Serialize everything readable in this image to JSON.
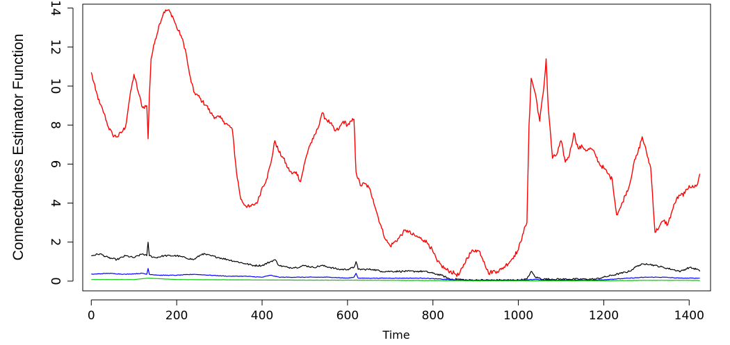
{
  "chart_data": {
    "type": "line",
    "title": "",
    "xlabel": "Time",
    "ylabel": "Connectedness Estimator Function",
    "xlim": [
      -20,
      1450
    ],
    "ylim": [
      -0.5,
      14.2
    ],
    "xticks": [
      0,
      200,
      400,
      600,
      800,
      1000,
      1200,
      1400
    ],
    "yticks": [
      0,
      2,
      4,
      6,
      8,
      10,
      12,
      14
    ],
    "grid": false,
    "legend": "none",
    "series": [
      {
        "color": "#ff0000",
        "x": [
          0,
          10,
          20,
          30,
          40,
          50,
          60,
          70,
          80,
          90,
          100,
          110,
          120,
          130,
          133,
          136,
          140,
          150,
          160,
          170,
          180,
          190,
          200,
          210,
          220,
          230,
          240,
          250,
          260,
          270,
          280,
          290,
          300,
          310,
          320,
          330,
          340,
          350,
          360,
          370,
          380,
          390,
          400,
          410,
          420,
          430,
          440,
          450,
          460,
          470,
          480,
          490,
          500,
          510,
          520,
          530,
          540,
          550,
          560,
          570,
          580,
          590,
          600,
          610,
          615,
          620,
          630,
          640,
          650,
          660,
          670,
          680,
          690,
          700,
          710,
          720,
          730,
          740,
          750,
          760,
          770,
          780,
          790,
          800,
          810,
          820,
          830,
          840,
          850,
          860,
          870,
          880,
          890,
          900,
          910,
          920,
          930,
          940,
          950,
          960,
          970,
          980,
          990,
          1000,
          1010,
          1020,
          1025,
          1030,
          1040,
          1050,
          1060,
          1065,
          1070,
          1080,
          1090,
          1100,
          1110,
          1120,
          1130,
          1140,
          1150,
          1160,
          1170,
          1180,
          1190,
          1200,
          1210,
          1220,
          1230,
          1240,
          1250,
          1260,
          1270,
          1280,
          1290,
          1300,
          1310,
          1320,
          1330,
          1340,
          1350,
          1360,
          1370,
          1380,
          1390,
          1400,
          1410,
          1420,
          1425
        ],
        "y": [
          10.7,
          9.8,
          9.1,
          8.6,
          7.9,
          7.5,
          7.4,
          7.6,
          7.9,
          9.4,
          10.6,
          9.7,
          8.9,
          9.0,
          7.3,
          9.5,
          11.4,
          12.4,
          13.2,
          13.8,
          13.9,
          13.6,
          13.0,
          12.6,
          11.9,
          10.6,
          9.7,
          9.5,
          9.2,
          9.0,
          8.6,
          8.4,
          8.4,
          8.2,
          8.0,
          7.8,
          5.6,
          4.2,
          3.9,
          3.8,
          3.9,
          4.1,
          4.8,
          5.2,
          6.0,
          7.2,
          6.6,
          6.3,
          5.8,
          5.5,
          5.6,
          5.1,
          6.1,
          6.9,
          7.3,
          7.8,
          8.6,
          8.3,
          8.1,
          7.7,
          7.8,
          8.2,
          8.0,
          8.2,
          8.3,
          5.6,
          4.9,
          5.0,
          4.8,
          4.2,
          3.4,
          2.7,
          2.1,
          1.8,
          2.0,
          2.2,
          2.5,
          2.6,
          2.4,
          2.3,
          2.2,
          2.1,
          1.9,
          1.5,
          1.0,
          0.8,
          0.6,
          0.5,
          0.4,
          0.3,
          0.7,
          1.2,
          1.5,
          1.6,
          1.5,
          1.0,
          0.4,
          0.5,
          0.5,
          0.6,
          0.8,
          1.0,
          1.3,
          1.6,
          2.4,
          3.0,
          8.0,
          10.4,
          9.6,
          8.2,
          10.0,
          11.4,
          8.9,
          6.3,
          6.5,
          7.2,
          6.1,
          6.5,
          7.6,
          6.8,
          6.9,
          6.7,
          6.8,
          6.5,
          6.0,
          5.8,
          5.5,
          5.2,
          3.4,
          3.8,
          4.4,
          4.9,
          6.0,
          6.6,
          7.4,
          6.6,
          5.8,
          2.5,
          2.8,
          3.1,
          2.9,
          3.6,
          4.2,
          4.4,
          4.5,
          4.9,
          4.8,
          5.0,
          5.5
        ],
        "noise": 0.22
      },
      {
        "color": "#000000",
        "x": [
          0,
          20,
          40,
          60,
          80,
          100,
          120,
          130,
          133,
          136,
          150,
          170,
          200,
          220,
          240,
          260,
          280,
          300,
          320,
          340,
          360,
          380,
          400,
          420,
          430,
          440,
          460,
          480,
          500,
          520,
          540,
          560,
          580,
          600,
          615,
          620,
          625,
          640,
          660,
          680,
          700,
          720,
          740,
          760,
          780,
          800,
          820,
          840,
          860,
          880,
          900,
          920,
          940,
          960,
          980,
          1000,
          1020,
          1030,
          1040,
          1060,
          1080,
          1100,
          1120,
          1140,
          1160,
          1180,
          1200,
          1220,
          1240,
          1260,
          1280,
          1300,
          1320,
          1340,
          1360,
          1380,
          1400,
          1420,
          1425
        ],
        "y": [
          1.3,
          1.4,
          1.2,
          1.1,
          1.3,
          1.2,
          1.4,
          1.3,
          2.0,
          1.3,
          1.2,
          1.3,
          1.3,
          1.2,
          1.1,
          1.4,
          1.3,
          1.2,
          1.1,
          1.0,
          0.9,
          0.8,
          0.8,
          1.0,
          1.1,
          0.8,
          0.7,
          0.7,
          0.8,
          0.7,
          0.8,
          0.7,
          0.6,
          0.6,
          0.7,
          1.0,
          0.6,
          0.6,
          0.6,
          0.5,
          0.5,
          0.5,
          0.5,
          0.5,
          0.5,
          0.4,
          0.3,
          0.1,
          0.1,
          0.05,
          0.05,
          0.05,
          0.05,
          0.05,
          0.05,
          0.05,
          0.1,
          0.5,
          0.2,
          0.1,
          0.1,
          0.1,
          0.1,
          0.1,
          0.1,
          0.1,
          0.2,
          0.3,
          0.4,
          0.5,
          0.8,
          0.9,
          0.8,
          0.7,
          0.6,
          0.5,
          0.7,
          0.6,
          0.5
        ],
        "noise": 0.09
      },
      {
        "color": "#0000ff",
        "x": [
          0,
          40,
          80,
          120,
          130,
          133,
          136,
          160,
          200,
          240,
          280,
          320,
          360,
          400,
          420,
          440,
          480,
          520,
          560,
          600,
          615,
          620,
          625,
          660,
          700,
          740,
          780,
          820,
          860,
          900,
          940,
          980,
          1020,
          1040,
          1060,
          1100,
          1140,
          1180,
          1220,
          1260,
          1300,
          1340,
          1380,
          1420,
          1425
        ],
        "y": [
          0.35,
          0.4,
          0.35,
          0.4,
          0.35,
          0.65,
          0.35,
          0.3,
          0.3,
          0.35,
          0.3,
          0.25,
          0.25,
          0.2,
          0.3,
          0.2,
          0.2,
          0.2,
          0.2,
          0.15,
          0.2,
          0.4,
          0.15,
          0.15,
          0.15,
          0.15,
          0.15,
          0.1,
          0.05,
          0.05,
          0.05,
          0.05,
          0.05,
          0.1,
          0.05,
          0.05,
          0.05,
          0.05,
          0.1,
          0.15,
          0.2,
          0.2,
          0.15,
          0.15,
          0.15
        ],
        "noise": 0.03
      },
      {
        "color": "#00cc00",
        "x": [
          0,
          100,
          133,
          200,
          300,
          400,
          500,
          600,
          700,
          800,
          900,
          1000,
          1100,
          1200,
          1300,
          1400,
          1425
        ],
        "y": [
          0.08,
          0.08,
          0.15,
          0.08,
          0.07,
          0.06,
          0.05,
          0.05,
          0.04,
          0.03,
          0.02,
          0.02,
          0.02,
          0.02,
          0.04,
          0.04,
          0.03
        ],
        "noise": 0.01
      }
    ]
  }
}
